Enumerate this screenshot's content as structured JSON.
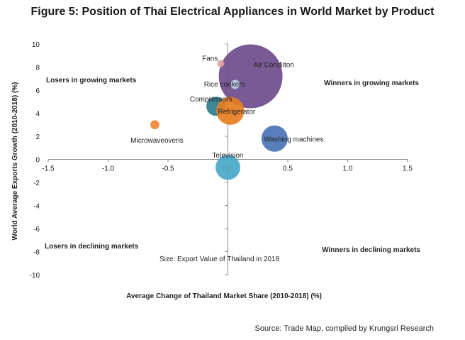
{
  "chart_data": {
    "type": "scatter",
    "title": "Figure 5: Position of Thai Electrical Appliances in World Market by Product",
    "xlabel": "Average Change of Thailand Market Share (2010-2018) (%)",
    "ylabel": "World Average Exports Growth (2010-2018) (%)",
    "xlim": [
      -1.5,
      1.5
    ],
    "ylim": [
      -10,
      10
    ],
    "xticks": [
      "-1.5",
      "-1.0",
      "-0.5",
      "0.0",
      "0.5",
      "1.0",
      "1.5"
    ],
    "yticks": [
      "10",
      "8",
      "6",
      "4",
      "2",
      "0",
      "-2",
      "-4",
      "-6",
      "-8",
      "-10"
    ],
    "grid": false,
    "size_note": "Size: Export Value of Thailand in 2018",
    "quadrant_labels": {
      "top_left": "Losers in growing markets",
      "top_right": "Winners in growing markets",
      "bottom_left": "Losers in declining markets",
      "bottom_right": "Winners in declining markets"
    },
    "points": [
      {
        "name": "Air Condition",
        "label": "Air Condiiton",
        "x": 0.19,
        "y": 7.2,
        "size": 100,
        "color": "#6e4c8c"
      },
      {
        "name": "Fans",
        "label": "Fans",
        "x": -0.06,
        "y": 8.3,
        "size": 1,
        "color": "#e0a0a8"
      },
      {
        "name": "Rice cookers",
        "label": "Rice cookers",
        "x": 0.06,
        "y": 6.5,
        "size": 2,
        "color": "#c5d3ec"
      },
      {
        "name": "Compressors",
        "label": "Compressors",
        "x": -0.1,
        "y": 4.6,
        "size": 9,
        "color": "#2e7d8e"
      },
      {
        "name": "Refrigerator",
        "label": "Refrigerator",
        "x": 0.02,
        "y": 4.2,
        "size": 19,
        "color": "#e67e22"
      },
      {
        "name": "Microwave ovens",
        "label": "Microwaveovens",
        "x": -0.61,
        "y": 3.0,
        "size": 2,
        "color": "#f0883a"
      },
      {
        "name": "Washing machines",
        "label": "Washing machines",
        "x": 0.39,
        "y": 1.8,
        "size": 17,
        "color": "#4a74b5"
      },
      {
        "name": "Television",
        "label": "Television",
        "x": 0.0,
        "y": -0.7,
        "size": 15,
        "color": "#4aa8c8"
      }
    ]
  },
  "source": "Source: Trade Map, compiled by Krungsri Research"
}
